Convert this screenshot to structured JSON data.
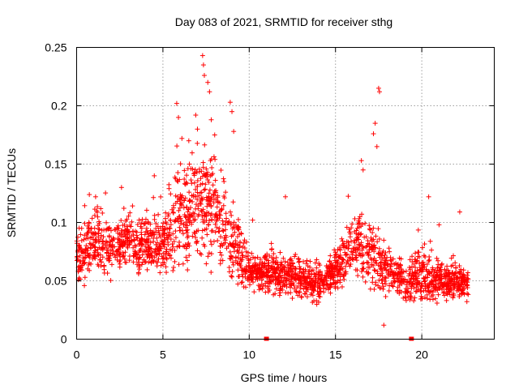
{
  "chart_data": {
    "type": "scatter",
    "title": "Day 083 of 2021, SRMTID for receiver sthg",
    "xlabel": "GPS time / hours",
    "ylabel": "SRMTID / TECUs",
    "xlim": [
      0,
      24.2
    ],
    "ylim": [
      0,
      0.25
    ],
    "xticks": [
      0,
      5,
      10,
      15,
      20
    ],
    "xtick_labels": [
      "0",
      "5",
      "10",
      "15",
      "20"
    ],
    "yticks": [
      0,
      0.05,
      0.1,
      0.15,
      0.2,
      0.25
    ],
    "ytick_labels": [
      "0",
      "0.05",
      "0.1",
      "0.15",
      "0.2",
      "0.25"
    ],
    "grid": true,
    "marker": "plus",
    "color": "#ff0000",
    "x_range_of_data": [
      0,
      22.7
    ],
    "envelope": [
      {
        "x": 0.0,
        "y_center": 0.07,
        "spread": 0.018
      },
      {
        "x": 1.0,
        "y_center": 0.08,
        "spread": 0.022
      },
      {
        "x": 2.0,
        "y_center": 0.078,
        "spread": 0.02
      },
      {
        "x": 3.0,
        "y_center": 0.085,
        "spread": 0.022
      },
      {
        "x": 4.0,
        "y_center": 0.082,
        "spread": 0.022
      },
      {
        "x": 5.0,
        "y_center": 0.08,
        "spread": 0.022
      },
      {
        "x": 6.0,
        "y_center": 0.105,
        "spread": 0.035
      },
      {
        "x": 7.0,
        "y_center": 0.115,
        "spread": 0.04
      },
      {
        "x": 8.0,
        "y_center": 0.11,
        "spread": 0.035
      },
      {
        "x": 9.0,
        "y_center": 0.085,
        "spread": 0.028
      },
      {
        "x": 10.0,
        "y_center": 0.058,
        "spread": 0.014
      },
      {
        "x": 11.0,
        "y_center": 0.058,
        "spread": 0.015
      },
      {
        "x": 12.0,
        "y_center": 0.055,
        "spread": 0.016
      },
      {
        "x": 13.0,
        "y_center": 0.05,
        "spread": 0.014
      },
      {
        "x": 14.0,
        "y_center": 0.048,
        "spread": 0.013
      },
      {
        "x": 15.0,
        "y_center": 0.058,
        "spread": 0.015
      },
      {
        "x": 16.0,
        "y_center": 0.082,
        "spread": 0.025
      },
      {
        "x": 17.0,
        "y_center": 0.07,
        "spread": 0.025
      },
      {
        "x": 18.0,
        "y_center": 0.06,
        "spread": 0.018
      },
      {
        "x": 19.0,
        "y_center": 0.048,
        "spread": 0.014
      },
      {
        "x": 20.0,
        "y_center": 0.055,
        "spread": 0.018
      },
      {
        "x": 21.0,
        "y_center": 0.05,
        "spread": 0.014
      },
      {
        "x": 22.0,
        "y_center": 0.048,
        "spread": 0.013
      },
      {
        "x": 22.7,
        "y_center": 0.048,
        "spread": 0.012
      }
    ],
    "highlights": [
      {
        "x": 5.8,
        "y": 0.202
      },
      {
        "x": 5.9,
        "y": 0.19
      },
      {
        "x": 6.1,
        "y": 0.172
      },
      {
        "x": 6.5,
        "y": 0.17
      },
      {
        "x": 6.9,
        "y": 0.192
      },
      {
        "x": 7.0,
        "y": 0.18
      },
      {
        "x": 7.3,
        "y": 0.243
      },
      {
        "x": 7.35,
        "y": 0.235
      },
      {
        "x": 7.4,
        "y": 0.226
      },
      {
        "x": 7.6,
        "y": 0.22
      },
      {
        "x": 7.7,
        "y": 0.212
      },
      {
        "x": 7.8,
        "y": 0.188
      },
      {
        "x": 8.0,
        "y": 0.175
      },
      {
        "x": 8.9,
        "y": 0.203
      },
      {
        "x": 9.0,
        "y": 0.195
      },
      {
        "x": 9.1,
        "y": 0.178
      },
      {
        "x": 4.5,
        "y": 0.14
      },
      {
        "x": 2.6,
        "y": 0.13
      },
      {
        "x": 1.1,
        "y": 0.122
      },
      {
        "x": 12.1,
        "y": 0.122
      },
      {
        "x": 16.5,
        "y": 0.153
      },
      {
        "x": 16.6,
        "y": 0.145
      },
      {
        "x": 17.5,
        "y": 0.215
      },
      {
        "x": 17.55,
        "y": 0.212
      },
      {
        "x": 17.3,
        "y": 0.185
      },
      {
        "x": 17.2,
        "y": 0.176
      },
      {
        "x": 17.4,
        "y": 0.165
      },
      {
        "x": 20.4,
        "y": 0.122
      },
      {
        "x": 22.2,
        "y": 0.109
      },
      {
        "x": 10.2,
        "y": 0.102
      },
      {
        "x": 17.8,
        "y": 0.012
      },
      {
        "x": 21.0,
        "y": 0.098
      }
    ],
    "axis_markers": [
      {
        "x": 11.0,
        "y": 0.0
      },
      {
        "x": 19.4,
        "y": 0.0
      }
    ]
  }
}
